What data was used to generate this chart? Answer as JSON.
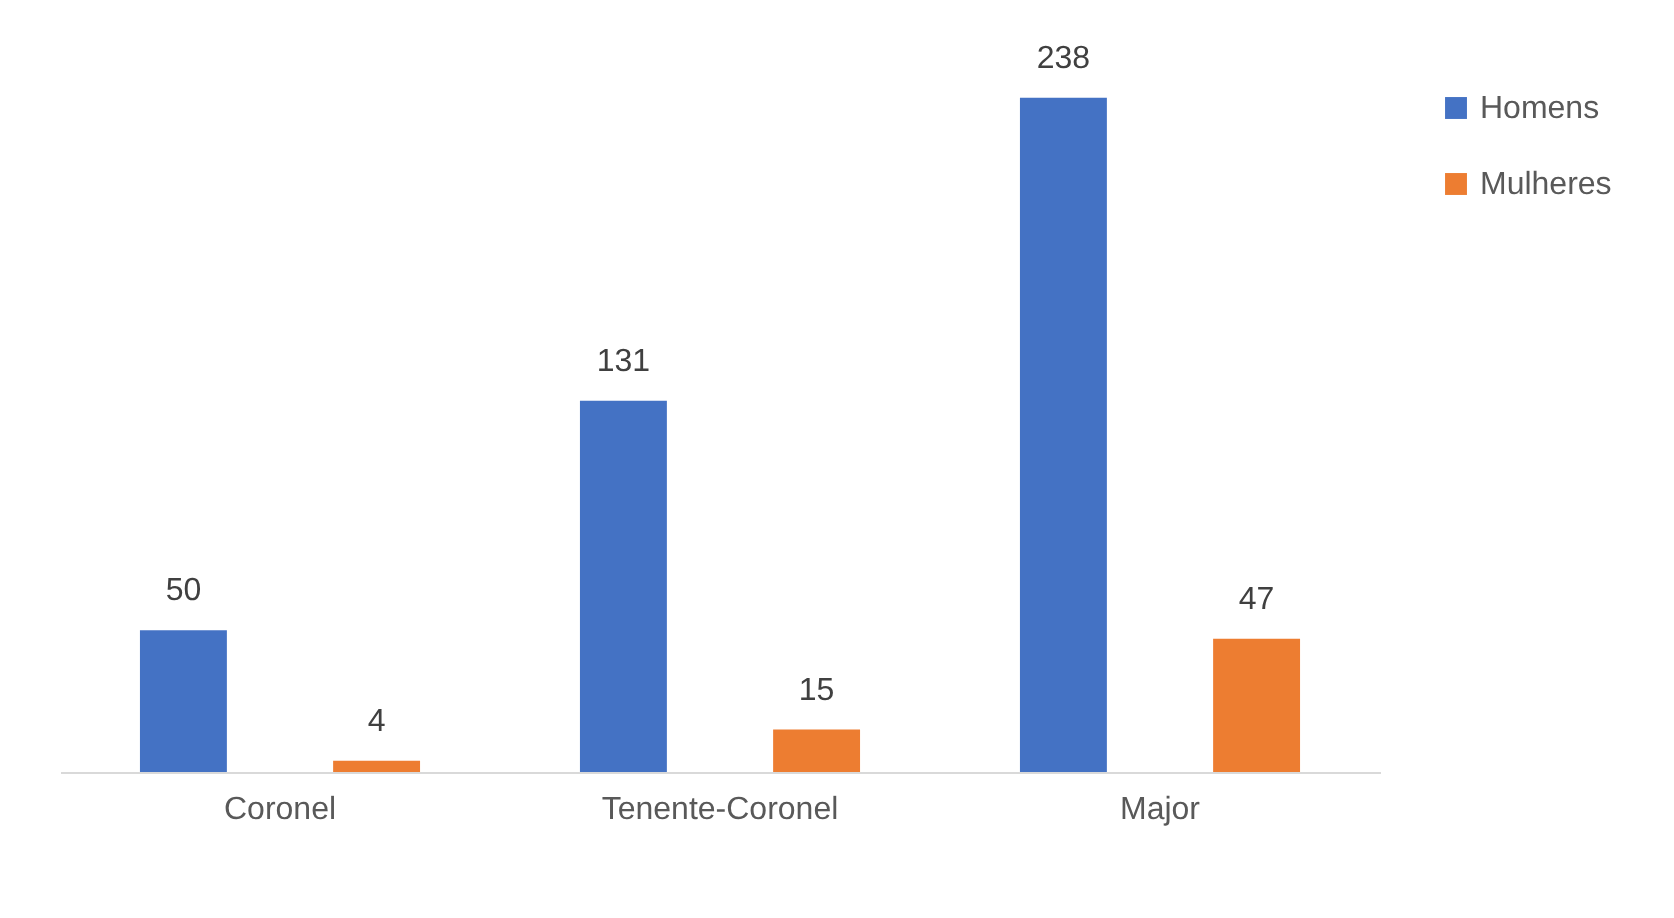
{
  "chart_data": {
    "type": "bar",
    "categories": [
      "Coronel",
      "Tenente-Coronel",
      "Major"
    ],
    "series": [
      {
        "name": "Homens",
        "color": "#4472c4",
        "values": [
          50,
          131,
          238
        ]
      },
      {
        "name": "Mulheres",
        "color": "#ed7d31",
        "values": [
          4,
          15,
          47
        ]
      }
    ],
    "data_labels": true,
    "legend": "right"
  }
}
